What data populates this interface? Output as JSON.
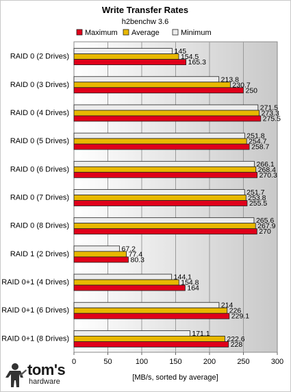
{
  "chart_data": {
    "type": "bar",
    "orientation": "horizontal",
    "title": "Write Transfer Rates",
    "subtitle": "h2benchw 3.6",
    "xlabel": "[MB/s, sorted by average]",
    "xlim": [
      0,
      300
    ],
    "xticks": [
      "0",
      "50",
      "100",
      "150",
      "200",
      "250",
      "300"
    ],
    "legend_position": "top",
    "categories": [
      "RAID 0 (2 Drives)",
      "RAID 0 (3 Drives)",
      "RAID 0 (4 Drives)",
      "RAID 0 (5 Drives)",
      "RAID 0 (6 Drives)",
      "RAID 0 (7 Drives)",
      "RAID 0 (8 Drives)",
      "RAID 1 (2 Drives)",
      "RAID 0+1 (4 Drives)",
      "RAID 0+1 (6 Drives)",
      "RAID 0+1 (8 Drives)"
    ],
    "series": [
      {
        "name": "Minimum",
        "color": "#ededed",
        "values": [
          145,
          213.8,
          271.5,
          251.8,
          266.1,
          251.7,
          265.6,
          67.2,
          144.1,
          214,
          171.1
        ],
        "labels": [
          "145",
          "213.8",
          "271.5",
          "251.8",
          "266.1",
          "251.7",
          "265.6",
          "67.2",
          "144.1",
          "214",
          "171.1"
        ]
      },
      {
        "name": "Average",
        "color": "#e8b800",
        "values": [
          154.5,
          230.7,
          273.3,
          254.7,
          268.4,
          253.8,
          267.9,
          77.4,
          154.8,
          226,
          222.6
        ],
        "labels": [
          "154.5",
          "230.7",
          "273.3",
          "254.7",
          "268.4",
          "253.8",
          "267.9",
          "77.4",
          "154.8",
          "226",
          "222.6"
        ]
      },
      {
        "name": "Maximum",
        "color": "#e0001a",
        "values": [
          165.3,
          250,
          275.5,
          258.7,
          270.3,
          255.5,
          270,
          80.3,
          164,
          229.1,
          228
        ],
        "labels": [
          "165.3",
          "250",
          "275.5",
          "258.7",
          "270.3",
          "255.5",
          "270",
          "80.3",
          "164",
          "229.1",
          "228"
        ]
      }
    ],
    "legend_order": [
      "Maximum",
      "Average",
      "Minimum"
    ]
  },
  "logo": {
    "main": "tom's",
    "sub": "hardware"
  }
}
